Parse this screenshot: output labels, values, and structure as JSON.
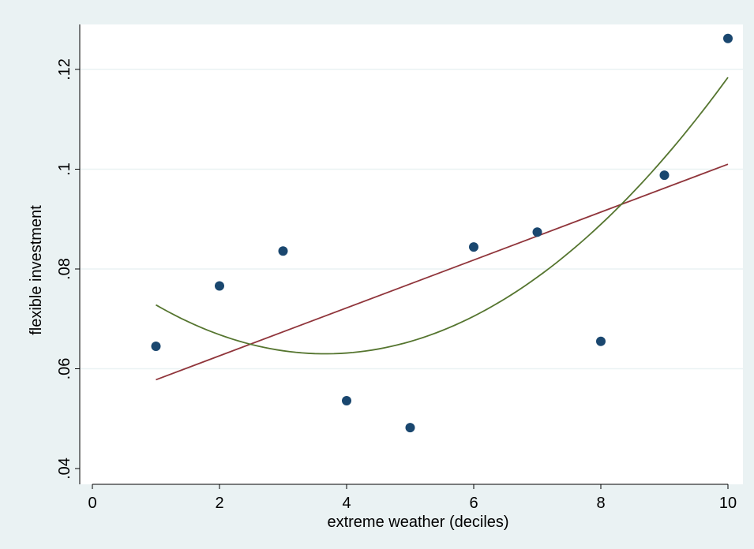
{
  "chart_data": {
    "type": "scatter",
    "xlabel": "extreme weather (deciles)",
    "ylabel": "flexible investment",
    "xlim": [
      0,
      10
    ],
    "ylim": [
      0.04,
      0.125
    ],
    "x_ticks": [
      0,
      2,
      4,
      6,
      8,
      10
    ],
    "x_tick_labels": [
      "0",
      "2",
      "4",
      "6",
      "8",
      "10"
    ],
    "y_ticks": [
      0.04,
      0.06,
      0.08,
      0.1,
      0.12
    ],
    "y_tick_labels": [
      ".04",
      ".06",
      ".08",
      ".1",
      ".12"
    ],
    "grid": "horizontal",
    "colors": {
      "points": "#1a476f",
      "linear": "#90353b",
      "quadratic": "#55752f",
      "plot_bg": "#ffffff",
      "outer_bg": "#eaf2f3",
      "grid": "#eaf2f3"
    },
    "series": [
      {
        "type": "scatter",
        "x": [
          1,
          2,
          3,
          4,
          5,
          6,
          7,
          8,
          9,
          10
        ],
        "y": [
          0.0645,
          0.0766,
          0.0836,
          0.0536,
          0.0482,
          0.0844,
          0.0874,
          0.0655,
          0.0988,
          0.1262
        ]
      },
      {
        "type": "line",
        "x": [
          1,
          10
        ],
        "y": [
          0.0578,
          0.101
        ]
      },
      {
        "type": "quadratic-fit",
        "x_range": [
          1,
          10
        ],
        "x": [
          1,
          3.7,
          10
        ],
        "y": [
          0.0728,
          0.063,
          0.1184
        ]
      }
    ]
  }
}
